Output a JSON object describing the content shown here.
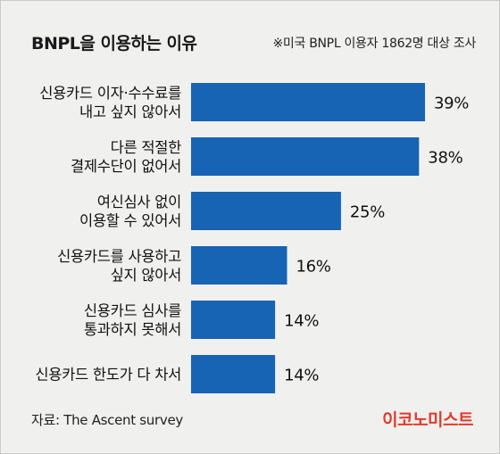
{
  "header": {
    "title": "BNPL을 이용하는 이유",
    "note": "※미국 BNPL 이용자 1862명 대상 조사"
  },
  "chart_data": {
    "type": "bar",
    "orientation": "horizontal",
    "categories": [
      [
        "신용카드  이자·수수료를",
        "내고 싶지 않아서"
      ],
      [
        "다른 적절한",
        "결제수단이 없어서"
      ],
      [
        "여신심사 없이",
        "이용할 수 있어서"
      ],
      [
        "신용카드를 사용하고",
        "싶지 않아서"
      ],
      [
        "신용카드 심사를",
        "통과하지 못해서"
      ],
      [
        "신용카드 한도가 다 차서"
      ]
    ],
    "values": [
      39,
      38,
      25,
      16,
      14,
      14
    ],
    "value_labels": [
      "39%",
      "38%",
      "25%",
      "16%",
      "14%",
      "14%"
    ],
    "unit": "%",
    "xlim": [
      0,
      40
    ],
    "bar_color": "#1763b4",
    "grid": false,
    "legend": "none"
  },
  "footer": {
    "source": "자료: The Ascent survey",
    "logo": "이코노미스트",
    "logo_color": "#e23b2d"
  }
}
